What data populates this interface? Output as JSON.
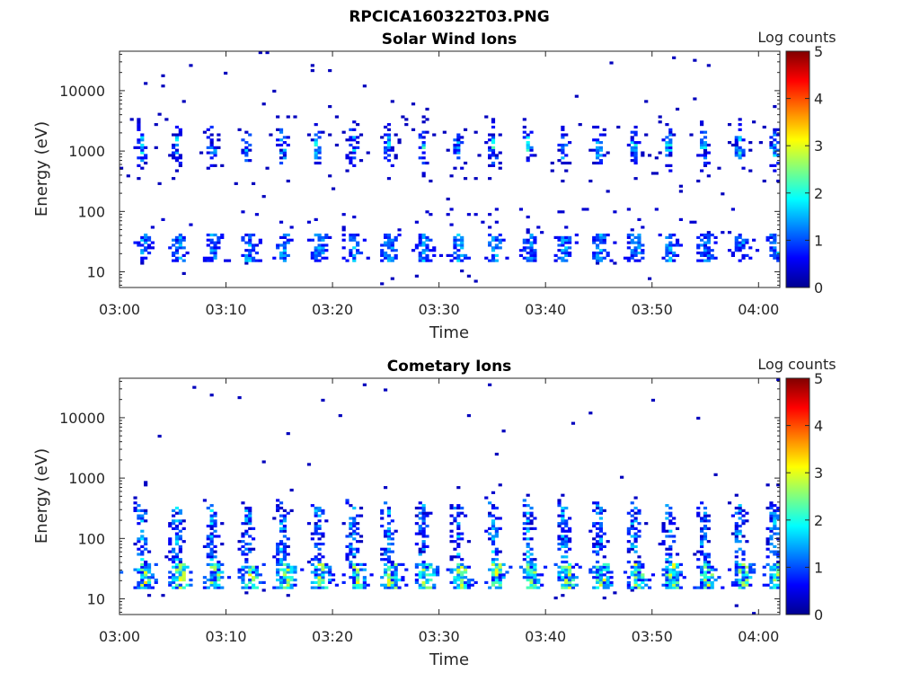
{
  "figure_title": "RPCICA160322T03.PNG",
  "chart_data": [
    {
      "type": "heatmap",
      "title": "Solar Wind Ions",
      "xlabel": "Time",
      "ylabel": "Energy (eV)",
      "x_ticks": [
        "03:00",
        "03:10",
        "03:20",
        "03:30",
        "03:40",
        "03:50",
        "04:00"
      ],
      "xlim": [
        "03:00",
        "04:02"
      ],
      "y_scale": "log",
      "y_ticks": [
        10,
        100,
        1000,
        10000
      ],
      "ylim": [
        5.5,
        45000
      ],
      "colorbar": {
        "label": "Log counts",
        "ticks": [
          0,
          1,
          2,
          3,
          4,
          5
        ],
        "range": [
          0,
          5
        ],
        "colormap": "jet"
      },
      "x_repeat_minutes": 3.3,
      "features": [
        {
          "description": "low-energy band",
          "energy": [
            15,
            40
          ],
          "peak_log_counts": 1.6
        },
        {
          "description": "solar wind proton band",
          "energy": [
            350,
            3500
          ],
          "peak_log_counts": 2.3
        }
      ]
    },
    {
      "type": "heatmap",
      "title": "Cometary Ions",
      "xlabel": "Time",
      "ylabel": "Energy (eV)",
      "x_ticks": [
        "03:00",
        "03:10",
        "03:20",
        "03:30",
        "03:40",
        "03:50",
        "04:00"
      ],
      "xlim": [
        "03:00",
        "04:02"
      ],
      "y_scale": "log",
      "y_ticks": [
        10,
        100,
        1000,
        10000
      ],
      "ylim": [
        5.5,
        45000
      ],
      "colorbar": {
        "label": "Log counts",
        "ticks": [
          0,
          1,
          2,
          3,
          4,
          5
        ],
        "range": [
          0,
          5
        ],
        "colormap": "jet"
      },
      "x_repeat_minutes": 3.3,
      "features": [
        {
          "description": "cometary ion band",
          "energy": [
            15,
            40
          ],
          "peak_log_counts": 3.2
        },
        {
          "description": "energetic tails",
          "energy": [
            40,
            900
          ],
          "peak_log_counts": 1.5
        }
      ]
    }
  ]
}
